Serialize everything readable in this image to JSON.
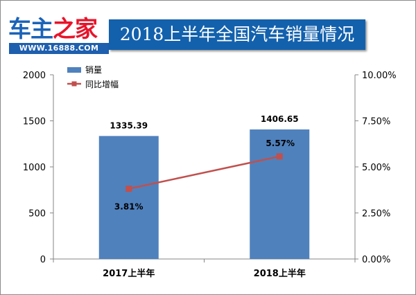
{
  "logo": {
    "brand_part1": "车主",
    "brand_part2": "之家",
    "url": "WWW.16888.COM"
  },
  "chart_data": {
    "type": "bar",
    "title": "2018上半年全国汽车销量情况",
    "categories": [
      "2017上半年",
      "2018上半年"
    ],
    "series": [
      {
        "name": "销量",
        "type": "bar",
        "axis": "left",
        "values": [
          1335.39,
          1406.65
        ],
        "labels": [
          "1335.39",
          "1406.65"
        ],
        "color": "#4f81bd"
      },
      {
        "name": "同比增幅",
        "type": "line",
        "axis": "right",
        "values": [
          3.81,
          5.57
        ],
        "labels": [
          "3.81%",
          "5.57%"
        ],
        "color": "#c0504d"
      }
    ],
    "y_left": {
      "ylim": [
        0,
        2000
      ],
      "ticks": [
        "0",
        "500",
        "1000",
        "1500",
        "2000"
      ]
    },
    "y_right": {
      "ylim": [
        0,
        10
      ],
      "ticks": [
        "0.00%",
        "2.50%",
        "5.00%",
        "7.50%",
        "10.00%"
      ]
    },
    "grid": false,
    "legend": "top-left"
  }
}
